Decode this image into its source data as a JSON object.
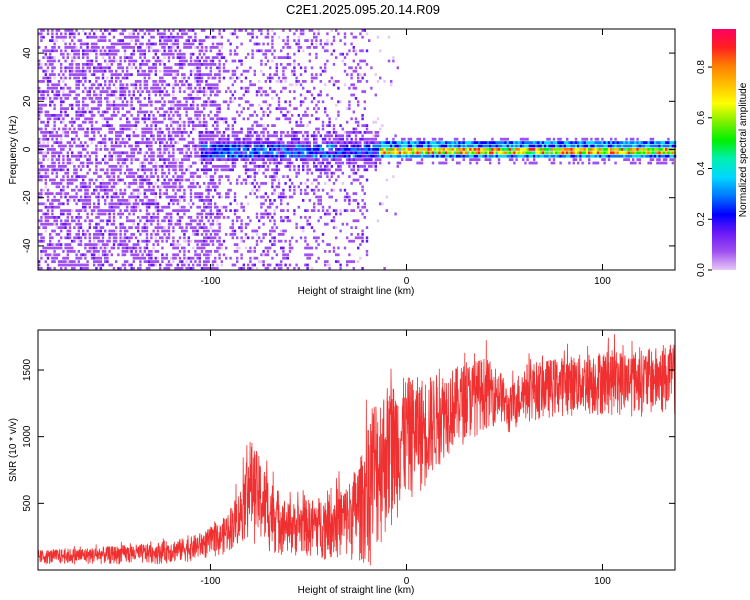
{
  "figure": {
    "title": "C2E1.2025.095.20.14.R09"
  },
  "chart_data": [
    {
      "type": "heatmap",
      "xlabel": "Height of straight line (km)",
      "ylabel": "Frequency (Hz)",
      "xlim": [
        -188,
        137
      ],
      "ylim": [
        -50,
        50
      ],
      "xticks": [
        -100,
        0,
        100
      ],
      "yticks": [
        -40,
        -20,
        0,
        20,
        40
      ],
      "grid": false,
      "colorbar": {
        "label": "Normalized spectral amplitude",
        "range": [
          0,
          0.95
        ],
        "ticks": [
          0.0,
          0.2,
          0.4,
          0.6,
          0.8
        ],
        "colormap": [
          "#e6c8f6",
          "#a050f0",
          "#6a18f8",
          "#0000ff",
          "#0078ff",
          "#00d8ff",
          "#00f0b0",
          "#00f000",
          "#80f000",
          "#ffff00",
          "#ffc000",
          "#ff8000",
          "#ff2020",
          "#ff0060"
        ]
      },
      "features": {
        "noise_region_x": [
          -188,
          -20
        ],
        "signal_start_x": -105,
        "signal_band_hz": [
          -4,
          4
        ],
        "strong_line_start_x": -15,
        "strong_line_hz": 0
      }
    },
    {
      "type": "line",
      "xlabel": "Height of straight line (km)",
      "ylabel": "SNR (10 * v/v)",
      "xlim": [
        -188,
        137
      ],
      "ylim": [
        0,
        1800
      ],
      "xticks": [
        -100,
        0,
        100
      ],
      "yticks": [
        500,
        1000,
        1500
      ],
      "series": [
        {
          "color": "#f03030",
          "envelope": {
            "x": [
              -188,
              -160,
              -130,
              -110,
              -95,
              -85,
              -80,
              -70,
              -60,
              -45,
              -30,
              -22,
              -18,
              -10,
              0,
              10,
              20,
              30,
              40,
              48,
              52,
              60,
              80,
              100,
              120,
              137
            ],
            "lower": [
              40,
              40,
              40,
              60,
              100,
              180,
              220,
              120,
              100,
              80,
              60,
              40,
              20,
              250,
              500,
              600,
              850,
              950,
              1050,
              1100,
              1000,
              1100,
              1150,
              1150,
              1150,
              1150
            ],
            "upper": [
              150,
              170,
              200,
              250,
              350,
              600,
              1000,
              700,
              500,
              550,
              650,
              900,
              1300,
              1400,
              1450,
              1450,
              1500,
              1550,
              1600,
              1500,
              1350,
              1550,
              1600,
              1650,
              1650,
              1700
            ]
          }
        }
      ]
    }
  ]
}
